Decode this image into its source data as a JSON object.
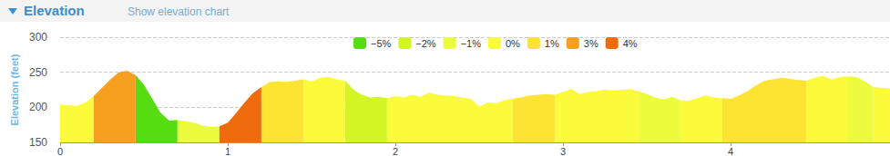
{
  "chart_data": {
    "type": "area",
    "title": "Elevation",
    "subtitle": "Show elevation chart",
    "y_label": "Elevation (feet)",
    "x": [
      0,
      0.05,
      0.1,
      0.15,
      0.2,
      0.25,
      0.3,
      0.35,
      0.4,
      0.45,
      0.5,
      0.55,
      0.6,
      0.65,
      0.7,
      0.75,
      0.8,
      0.85,
      0.9,
      0.95,
      1,
      1.05,
      1.1,
      1.15,
      1.2,
      1.25,
      1.3,
      1.35,
      1.4,
      1.45,
      1.5,
      1.55,
      1.6,
      1.65,
      1.7,
      1.75,
      1.8,
      1.85,
      1.9,
      1.95,
      2,
      2.05,
      2.1,
      2.15,
      2.2,
      2.25,
      2.3,
      2.35,
      2.4,
      2.45,
      2.5,
      2.55,
      2.6,
      2.65,
      2.7,
      2.75,
      2.8,
      2.85,
      2.9,
      2.95,
      3,
      3.05,
      3.1,
      3.15,
      3.2,
      3.25,
      3.3,
      3.35,
      3.4,
      3.45,
      3.5,
      3.55,
      3.6,
      3.65,
      3.7,
      3.75,
      3.8,
      3.85,
      3.9,
      3.95,
      4,
      4.05,
      4.1,
      4.15,
      4.2,
      4.25,
      4.3,
      4.35,
      4.4,
      4.45,
      4.5,
      4.55,
      4.6,
      4.65,
      4.7,
      4.75,
      4.8,
      4.85,
      4.9,
      4.95
    ],
    "series": [
      {
        "name": "−5%",
        "color": "#55dd11",
        "values": [
          null,
          null,
          null,
          null,
          null,
          null,
          null,
          null,
          null,
          246,
          232,
          212,
          192,
          181,
          182,
          null,
          null,
          null,
          null,
          null,
          null,
          null,
          null,
          null,
          null,
          null,
          null,
          null,
          null,
          null,
          null,
          null,
          null,
          null,
          null,
          null,
          null,
          null,
          null,
          null,
          null,
          null,
          null,
          null,
          null,
          null,
          null,
          null,
          null,
          null,
          null,
          null,
          null,
          null,
          null,
          null,
          null,
          null,
          null,
          null,
          null,
          null,
          null,
          null,
          null,
          null,
          null,
          null,
          null,
          null,
          null,
          null,
          null,
          null,
          null,
          null,
          null,
          null,
          null,
          null,
          null,
          null,
          null,
          null,
          null,
          null,
          null,
          null,
          null,
          null,
          null,
          null,
          null,
          null,
          null,
          null,
          null,
          null,
          null,
          null
        ]
      },
      {
        "name": "−2%",
        "color": "#d2f523",
        "values": [
          null,
          null,
          null,
          null,
          null,
          null,
          null,
          null,
          null,
          null,
          null,
          null,
          null,
          null,
          null,
          null,
          null,
          null,
          null,
          null,
          null,
          null,
          null,
          null,
          null,
          null,
          null,
          null,
          null,
          null,
          null,
          null,
          null,
          null,
          238,
          225,
          218,
          214,
          215,
          213,
          null,
          null,
          null,
          null,
          null,
          null,
          null,
          null,
          null,
          null,
          null,
          null,
          null,
          null,
          null,
          null,
          null,
          null,
          null,
          null,
          null,
          null,
          null,
          null,
          null,
          null,
          null,
          null,
          null,
          null,
          null,
          null,
          null,
          null,
          null,
          null,
          null,
          null,
          null,
          null,
          null,
          null,
          null,
          null,
          null,
          null,
          null,
          null,
          null,
          null,
          null,
          null,
          null,
          null,
          null,
          null,
          null,
          null,
          null,
          null
        ]
      },
      {
        "name": "−1%",
        "color": "#ecfb3b",
        "values": [
          null,
          null,
          null,
          null,
          null,
          null,
          null,
          null,
          null,
          null,
          null,
          null,
          null,
          null,
          182,
          180,
          178,
          174,
          172,
          173,
          null,
          null,
          null,
          null,
          null,
          null,
          null,
          null,
          null,
          null,
          null,
          null,
          null,
          null,
          null,
          null,
          null,
          null,
          null,
          null,
          null,
          null,
          null,
          null,
          null,
          null,
          null,
          null,
          null,
          null,
          null,
          null,
          null,
          null,
          null,
          null,
          null,
          null,
          null,
          null,
          null,
          null,
          null,
          null,
          null,
          null,
          null,
          null,
          null,
          223,
          219,
          214,
          211,
          215,
          210,
          null,
          null,
          null,
          null,
          null,
          null,
          null,
          null,
          null,
          null,
          null,
          null,
          null,
          null,
          null,
          null,
          null,
          null,
          null,
          244,
          243,
          237,
          229,
          null,
          null
        ]
      },
      {
        "name": "0%",
        "color": "#fbfb3c",
        "values": [
          204,
          203,
          202,
          207,
          216,
          null,
          null,
          null,
          null,
          null,
          null,
          null,
          null,
          null,
          null,
          null,
          null,
          null,
          null,
          null,
          null,
          null,
          null,
          null,
          null,
          null,
          null,
          null,
          null,
          240,
          237,
          242,
          243,
          240,
          238,
          null,
          null,
          null,
          null,
          213,
          216,
          214,
          218,
          215,
          221,
          218,
          217,
          216,
          214,
          212,
          201,
          207,
          206,
          210,
          212,
          null,
          null,
          null,
          null,
          218,
          222,
          226,
          219,
          222,
          223,
          225,
          224,
          225,
          226,
          223,
          null,
          null,
          null,
          null,
          210,
          209,
          213,
          217,
          214,
          213,
          null,
          null,
          null,
          null,
          null,
          null,
          null,
          null,
          null,
          238,
          242,
          245,
          240,
          243,
          244,
          null,
          null,
          229,
          228,
          227
        ]
      },
      {
        "name": "1%",
        "color": "#fde433",
        "values": [
          null,
          null,
          null,
          null,
          null,
          null,
          null,
          null,
          null,
          null,
          null,
          null,
          null,
          null,
          null,
          null,
          null,
          null,
          null,
          null,
          null,
          null,
          null,
          null,
          229,
          236,
          237,
          236,
          238,
          240,
          null,
          null,
          null,
          null,
          null,
          null,
          null,
          null,
          null,
          null,
          null,
          null,
          null,
          null,
          null,
          null,
          null,
          null,
          null,
          null,
          null,
          null,
          null,
          null,
          212,
          214,
          217,
          218,
          219,
          218,
          null,
          null,
          null,
          null,
          null,
          null,
          null,
          null,
          null,
          null,
          null,
          null,
          null,
          null,
          null,
          null,
          null,
          null,
          null,
          213,
          212,
          217,
          223,
          231,
          238,
          240,
          242,
          241,
          239,
          238,
          null,
          null,
          null,
          null,
          null,
          null,
          null,
          null,
          null,
          null
        ]
      },
      {
        "name": "3%",
        "color": "#f7a020",
        "values": [
          null,
          null,
          null,
          null,
          216,
          228,
          240,
          250,
          252,
          246,
          null,
          null,
          null,
          null,
          null,
          null,
          null,
          null,
          null,
          null,
          null,
          null,
          null,
          null,
          null,
          null,
          null,
          null,
          null,
          null,
          null,
          null,
          null,
          null,
          null,
          null,
          null,
          null,
          null,
          null,
          null,
          null,
          null,
          null,
          null,
          null,
          null,
          null,
          null,
          null,
          null,
          null,
          null,
          null,
          null,
          null,
          null,
          null,
          null,
          null,
          null,
          null,
          null,
          null,
          null,
          null,
          null,
          null,
          null,
          null,
          null,
          null,
          null,
          null,
          null,
          null,
          null,
          null,
          null,
          null,
          null,
          null,
          null,
          null,
          null,
          null,
          null,
          null,
          null,
          null,
          null,
          null,
          null,
          null,
          null,
          null,
          null,
          null,
          null,
          null
        ]
      },
      {
        "name": "4%",
        "color": "#ef6c0e",
        "values": [
          null,
          null,
          null,
          null,
          null,
          null,
          null,
          null,
          null,
          null,
          null,
          null,
          null,
          null,
          null,
          null,
          null,
          null,
          null,
          173,
          178,
          192,
          207,
          220,
          229,
          null,
          null,
          null,
          null,
          null,
          null,
          null,
          null,
          null,
          null,
          null,
          null,
          null,
          null,
          null,
          null,
          null,
          null,
          null,
          null,
          null,
          null,
          null,
          null,
          null,
          null,
          null,
          null,
          null,
          null,
          null,
          null,
          null,
          null,
          null,
          null,
          null,
          null,
          null,
          null,
          null,
          null,
          null,
          null,
          null,
          null,
          null,
          null,
          null,
          null,
          null,
          null,
          null,
          null,
          null,
          null,
          null,
          null,
          null,
          null,
          null,
          null,
          null,
          null,
          null,
          null,
          null,
          null,
          null,
          null,
          null,
          null,
          null,
          null,
          null
        ]
      }
    ],
    "xlim": [
      0,
      4.95
    ],
    "xticks": [
      0,
      1,
      2,
      3,
      4
    ],
    "ylim": [
      150,
      300
    ],
    "yticks": [
      150,
      200,
      250,
      300
    ],
    "grid": true,
    "legend": "top"
  }
}
